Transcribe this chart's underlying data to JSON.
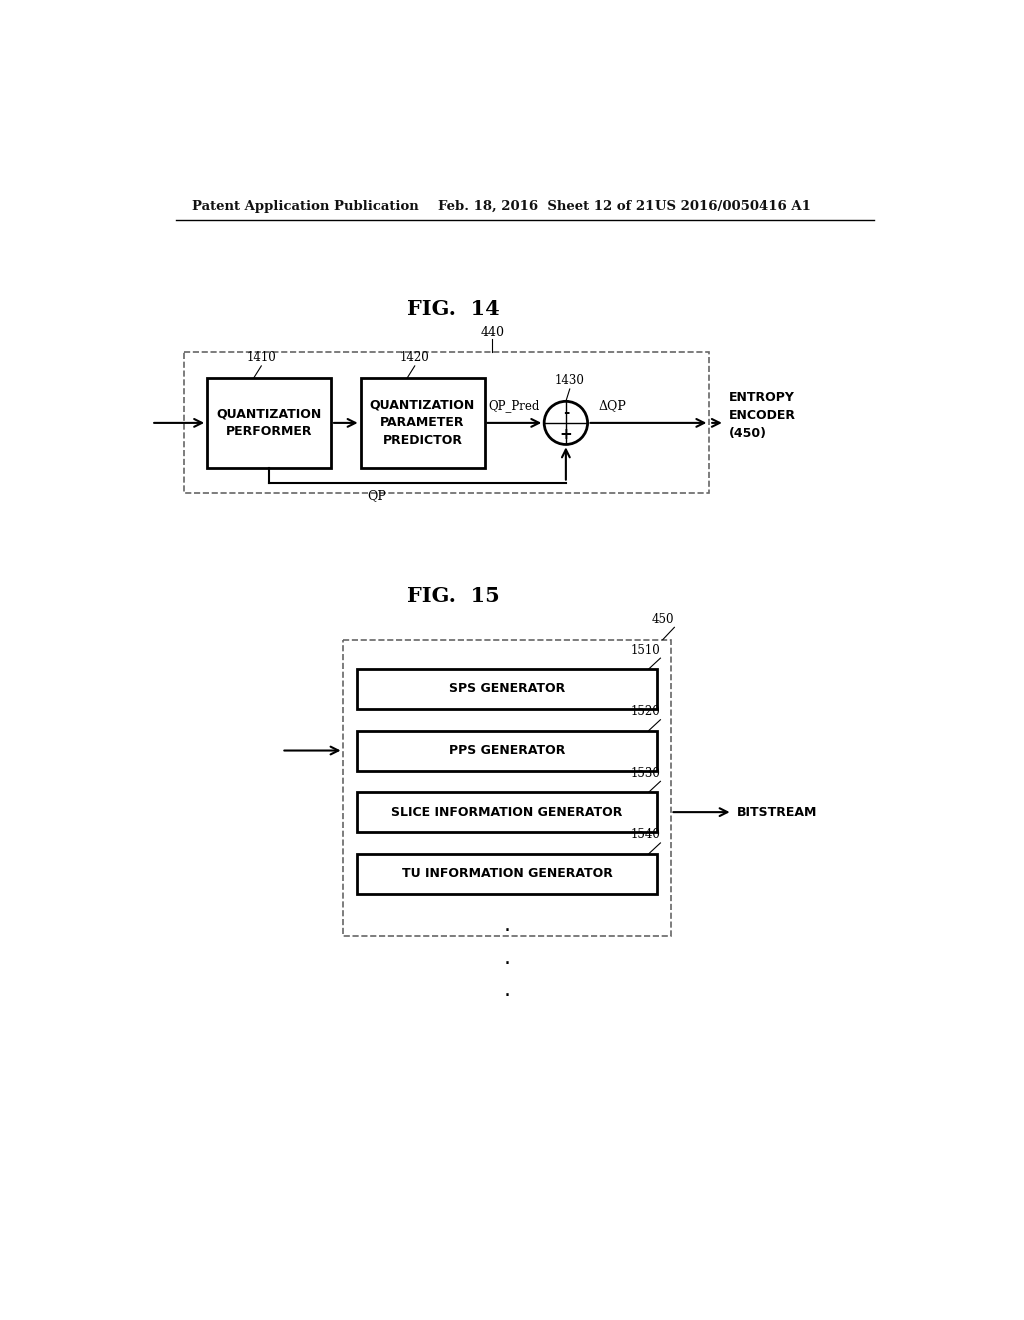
{
  "bg_color": "#ffffff",
  "header_left": "Patent Application Publication",
  "header_mid": "Feb. 18, 2016  Sheet 12 of 21",
  "header_right": "US 2016/0050416 A1",
  "fig14_title": "FIG.  14",
  "fig15_title": "FIG.  15",
  "fig14": {
    "label_440": "440",
    "block1_text": "QUANTIZATION\nPERFORMER",
    "block1_label": "1410",
    "block2_text": "QUANTIZATION\nPARAMETER\nPREDICTOR",
    "block2_label": "1420",
    "circle_label": "1430",
    "entropy_text": "ENTROPY\nENCODER\n(450)",
    "qp_pred_label": "QP_Pred",
    "minus_label": "-",
    "plus_label": "+",
    "delta_qp_label": "ΔQP",
    "qp_label": "QP"
  },
  "fig15": {
    "label_450": "450",
    "blocks": [
      {
        "label": "1510",
        "text": "SPS GENERATOR"
      },
      {
        "label": "1520",
        "text": "PPS GENERATOR"
      },
      {
        "label": "1530",
        "text": "SLICE INFORMATION GENERATOR"
      },
      {
        "label": "1540",
        "text": "TU INFORMATION GENERATOR"
      }
    ],
    "bitstream_label": "BITSTREAM"
  }
}
